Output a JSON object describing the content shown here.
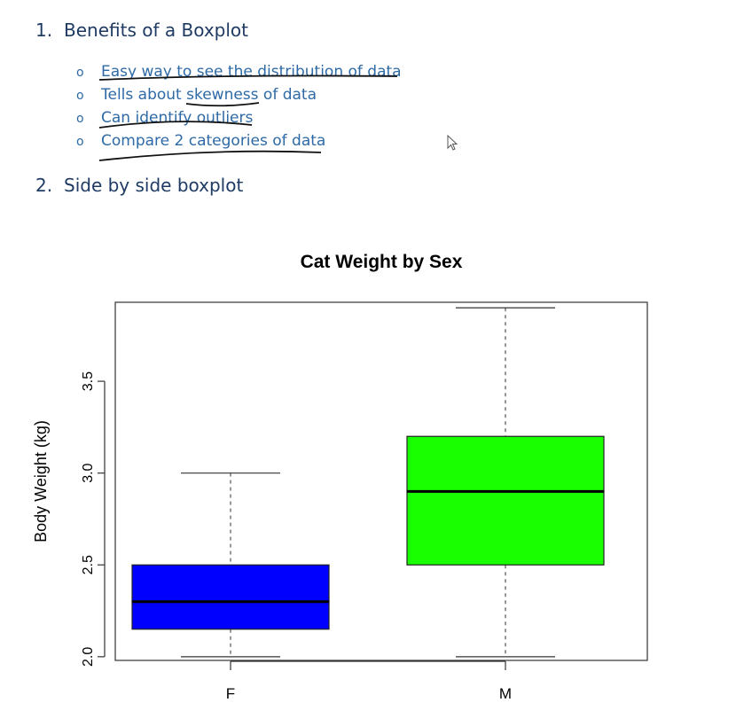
{
  "document": {
    "section1": {
      "number": "1.",
      "title": "Benefits of a Boxplot"
    },
    "bullets": [
      "Easy way to see the distribution of data",
      "Tells about skewness of data",
      "Can identify outliers",
      "Compare 2 categories of data"
    ],
    "bullet_marker": "o",
    "section2": {
      "number": "2.",
      "title": "Side by side boxplot"
    }
  },
  "chart_data": {
    "type": "boxplot",
    "title": "Cat Weight by Sex",
    "xlabel": "",
    "ylabel": "Body Weight (kg)",
    "ylim": [
      1.98,
      3.93
    ],
    "yticks": [
      2.0,
      2.5,
      3.0,
      3.5
    ],
    "ytick_labels": [
      "2.0",
      "2.5",
      "3.0",
      "3.5"
    ],
    "categories": [
      "F",
      "M"
    ],
    "boxes": [
      {
        "category": "F",
        "min": 2.0,
        "q1": 2.15,
        "median": 2.3,
        "q3": 2.5,
        "max": 3.0,
        "color": "#0000ff"
      },
      {
        "category": "M",
        "min": 2.0,
        "q1": 2.5,
        "median": 2.9,
        "q3": 3.2,
        "max": 3.9,
        "color": "#1aff00"
      }
    ],
    "grid": false,
    "legend": "none"
  }
}
